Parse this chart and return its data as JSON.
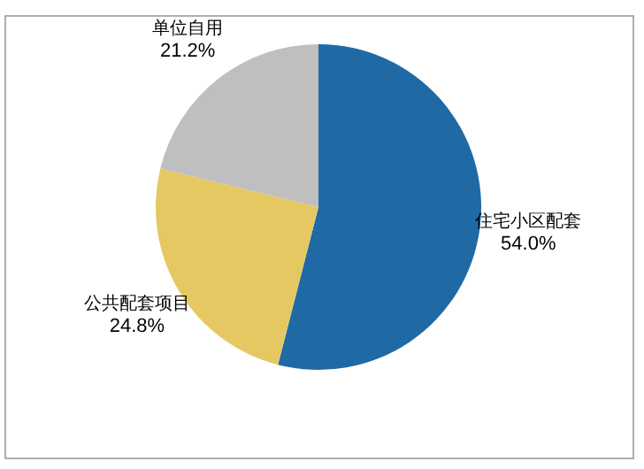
{
  "chart_data": {
    "type": "pie",
    "categories": [
      "住宅小区配套",
      "公共配套项目",
      "单位自用"
    ],
    "values": [
      54.0,
      24.8,
      21.2
    ],
    "colors": [
      "#1f6aa5",
      "#e6c862",
      "#bfbfbf"
    ],
    "value_labels": [
      "54.0%",
      "24.8%",
      "21.2%"
    ],
    "legend": false
  }
}
